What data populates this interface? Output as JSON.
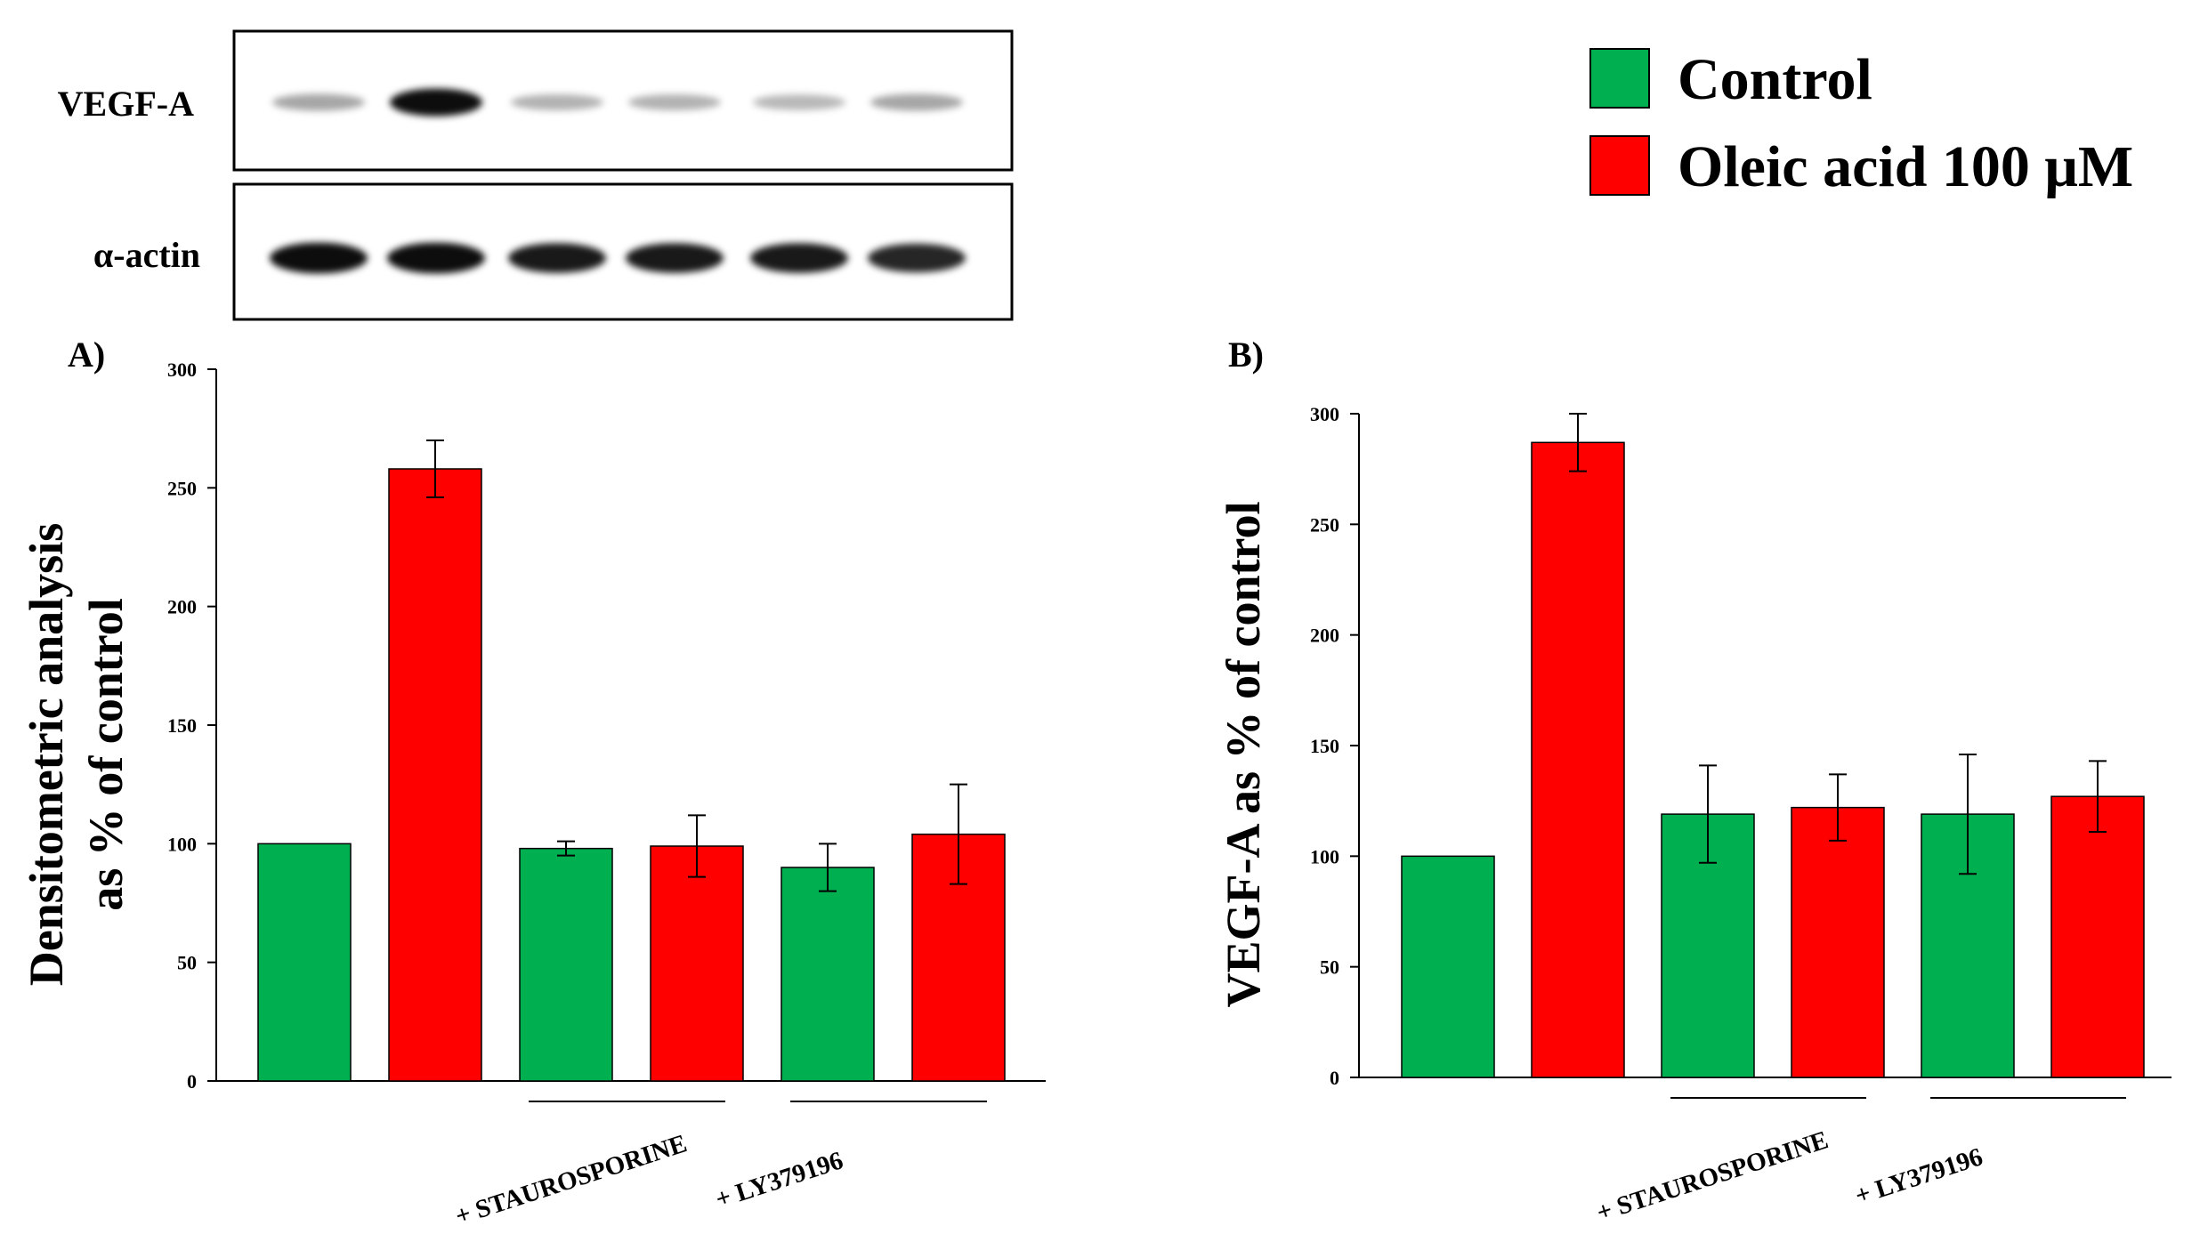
{
  "colors": {
    "control": "#00b050",
    "oleic": "#ff0000",
    "axis": "#000000"
  },
  "blot": {
    "row1_label": "VEGF-A",
    "row2_label": "α-actin",
    "row1_intensity": [
      0.35,
      0.95,
      0.3,
      0.3,
      0.28,
      0.35
    ],
    "row2_intensity": [
      0.95,
      0.95,
      0.9,
      0.9,
      0.9,
      0.85
    ]
  },
  "legend": {
    "items": [
      {
        "label": "Control",
        "color": "#00b050"
      },
      {
        "label": "Oleic acid 100 μM",
        "color": "#ff0000"
      }
    ]
  },
  "chart_data": [
    {
      "type": "bar",
      "panel_label": "A)",
      "ylabel_line1": "Densitometric analysis",
      "ylabel_line2": "as % of control",
      "ylim": [
        0,
        300
      ],
      "yticks": [
        "0",
        "50",
        "100",
        "150",
        "200",
        "250",
        "300"
      ],
      "bars": [
        {
          "series": "Control",
          "value": 100,
          "error": 0
        },
        {
          "series": "Oleic acid 100 μM",
          "value": 258,
          "error": 12
        },
        {
          "series": "Control",
          "value": 98,
          "error": 3
        },
        {
          "series": "Oleic acid 100 μM",
          "value": 99,
          "error": 13
        },
        {
          "series": "Control",
          "value": 90,
          "error": 10
        },
        {
          "series": "Oleic acid 100 μM",
          "value": 104,
          "error": 21
        }
      ],
      "groups": [
        {
          "label": "+ STAUROSPORINE",
          "bars": [
            2,
            3
          ]
        },
        {
          "label": "+ LY379196",
          "bars": [
            4,
            5
          ]
        }
      ]
    },
    {
      "type": "bar",
      "panel_label": "B)",
      "ylabel_line1": "VEGF-A as % of control",
      "ylim": [
        0,
        300
      ],
      "yticks": [
        "0",
        "50",
        "100",
        "150",
        "200",
        "250",
        "300"
      ],
      "bars": [
        {
          "series": "Control",
          "value": 100,
          "error": 0
        },
        {
          "series": "Oleic acid 100 μM",
          "value": 287,
          "error": 13
        },
        {
          "series": "Control",
          "value": 119,
          "error": 22
        },
        {
          "series": "Oleic acid 100 μM",
          "value": 122,
          "error": 15
        },
        {
          "series": "Control",
          "value": 119,
          "error": 27
        },
        {
          "series": "Oleic acid 100 μM",
          "value": 127,
          "error": 16
        }
      ],
      "groups": [
        {
          "label": "+ STAUROSPORINE",
          "bars": [
            2,
            3
          ]
        },
        {
          "label": "+ LY379196",
          "bars": [
            4,
            5
          ]
        }
      ]
    }
  ]
}
